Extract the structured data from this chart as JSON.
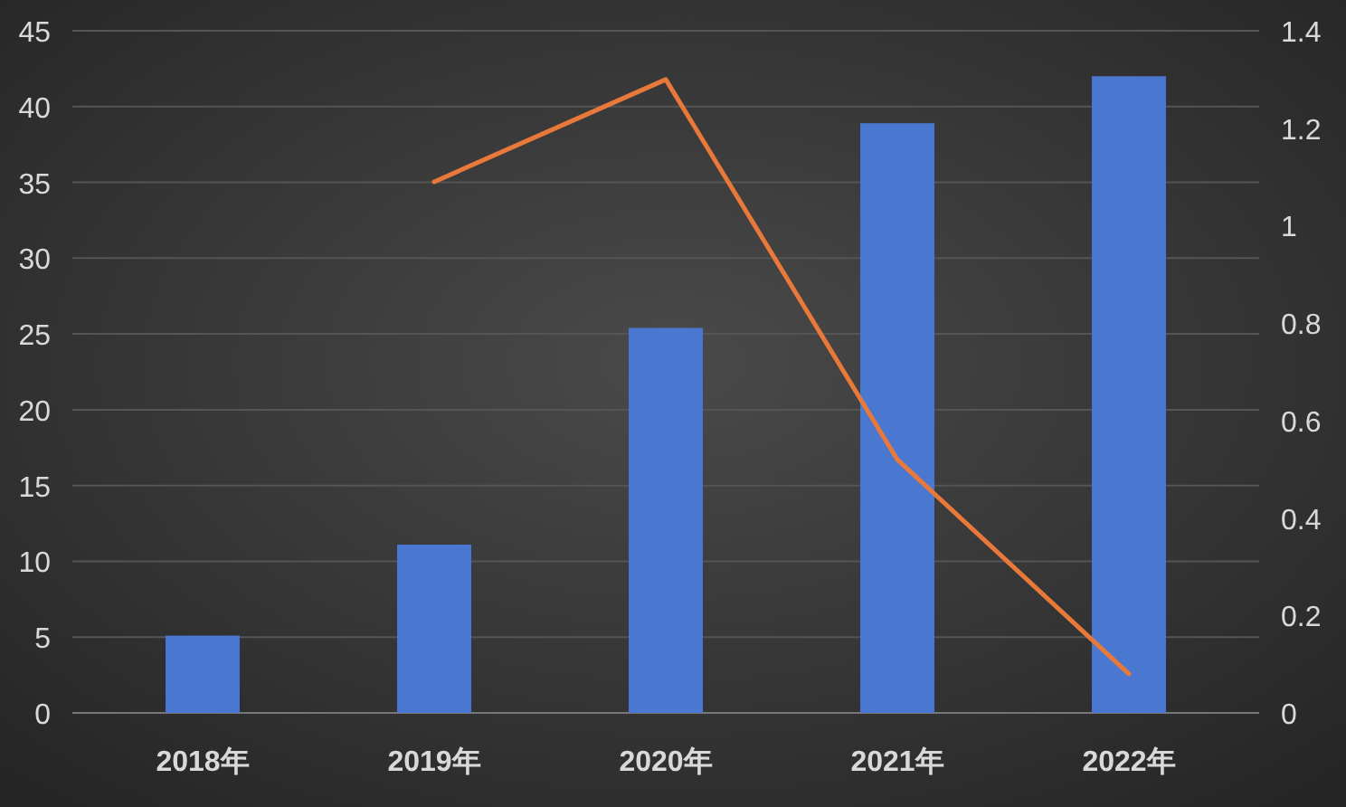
{
  "chart_data": {
    "type": "bar",
    "categories": [
      "2018年",
      "2019年",
      "2020年",
      "2021年",
      "2022年"
    ],
    "series": [
      {
        "color": "#4a78d0",
        "values": [
          5.1,
          11.1,
          25.4,
          38.9,
          42.0
        ]
      },
      {
        "type": "line",
        "axis": "y2",
        "color": "#e8793a",
        "values": [
          null,
          1.09,
          1.3,
          0.52,
          0.08
        ]
      }
    ],
    "ylim": [
      0,
      45
    ],
    "yticks": [
      0,
      5,
      10,
      15,
      20,
      25,
      30,
      35,
      40,
      45
    ],
    "y2lim": [
      0,
      1.4
    ],
    "y2ticks": [
      0,
      0.2,
      0.4,
      0.6,
      0.8,
      1,
      1.2,
      1.4
    ],
    "grid": "y",
    "marker": "none",
    "line_style": "solid"
  }
}
